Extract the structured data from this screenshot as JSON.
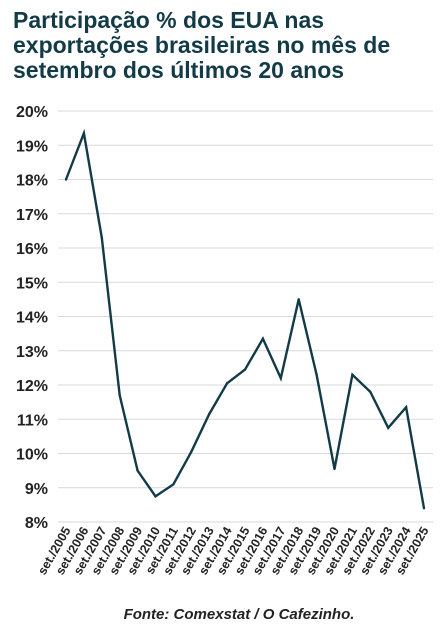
{
  "chart_data": {
    "type": "line",
    "title_lines": [
      "Participação % dos EUA nas",
      "exportações brasileiras no mês de",
      "setembro dos últimos 20 anos"
    ],
    "source": "Fonte: Comexstat / O Cafezinho.",
    "x": [
      "set./2005",
      "set./2006",
      "set./2007",
      "set./2008",
      "set./2009",
      "set./2010",
      "set./2011",
      "set./2012",
      "set./2013",
      "set./2014",
      "set./2015",
      "set./2016",
      "set./2017",
      "set./2018",
      "set./2019",
      "set./2020",
      "set./2021",
      "set./2022",
      "set./2023",
      "set./2024",
      "set./2025"
    ],
    "series": [
      {
        "values": [
          18.0,
          19.35,
          16.3,
          11.7,
          9.5,
          8.75,
          9.1,
          10.05,
          11.15,
          12.05,
          12.45,
          13.35,
          12.2,
          14.5,
          12.3,
          9.55,
          12.3,
          11.8,
          10.75,
          11.35,
          8.4
        ]
      }
    ],
    "yticks": [
      "8%",
      "9%",
      "10%",
      "11%",
      "12%",
      "13%",
      "14%",
      "15%",
      "16%",
      "17%",
      "18%",
      "19%",
      "20%"
    ],
    "ylim": [
      8,
      20
    ],
    "grid": true,
    "line_color": "#123b47",
    "grid_color": "#d9d9d9"
  }
}
